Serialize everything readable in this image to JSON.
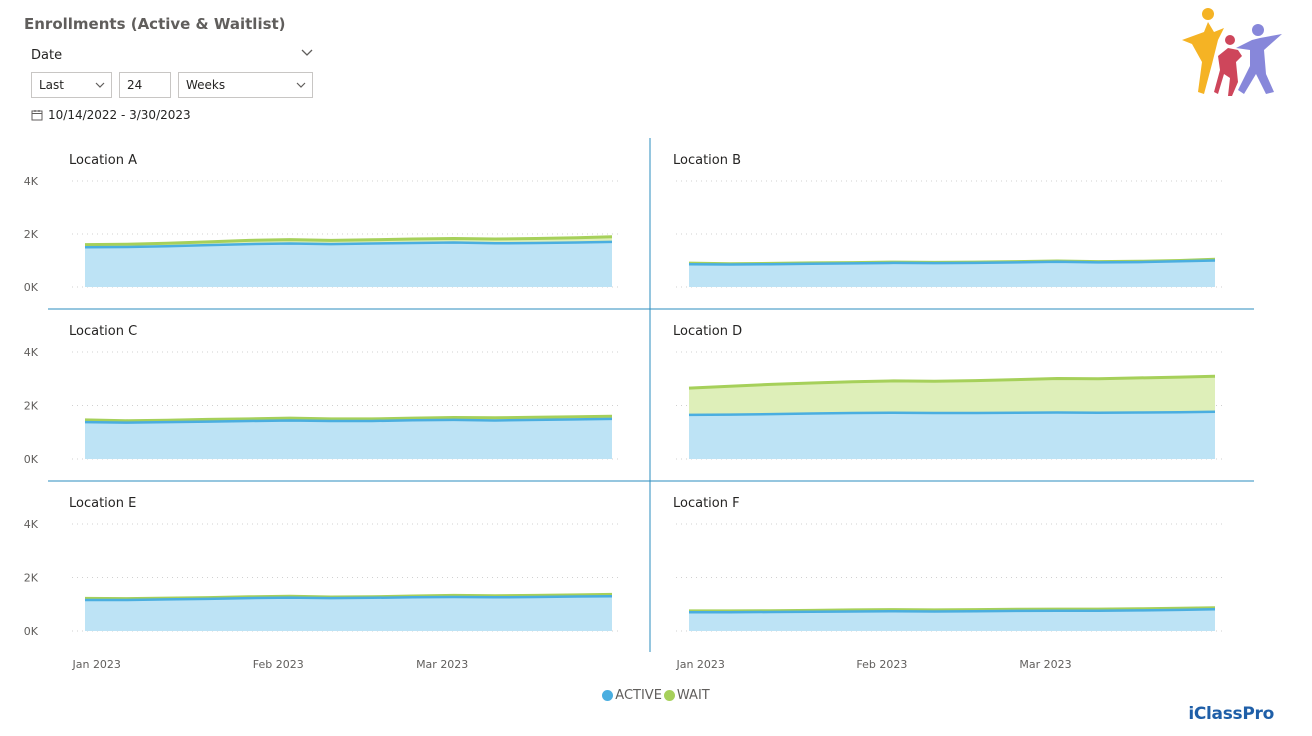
{
  "header": {
    "title": "Enrollments (Active & Waitlist)"
  },
  "slicer": {
    "label": "Date",
    "mode": "Last",
    "count": "24",
    "unit": "Weeks",
    "range_text": "10/14/2022 - 3/30/2023"
  },
  "brand": {
    "name": "iClassPro"
  },
  "colors": {
    "active_line": "#4aaee0",
    "active_fill": "#bde3f5",
    "wait_line": "#a6d05a",
    "wait_fill": "#deefb9",
    "divider": "#2b8dbf"
  },
  "chart_data": {
    "type": "area",
    "x_ticks": [
      "Jan 2023",
      "Feb 2023",
      "Mar 2023"
    ],
    "y_ticks": [
      "0K",
      "2K",
      "4K"
    ],
    "ylim": [
      0,
      4000
    ],
    "legend": {
      "position": "bottom-center",
      "items": [
        "ACTIVE",
        "WAIT"
      ]
    },
    "x": [
      "2022-12-30",
      "2023-01-06",
      "2023-01-13",
      "2023-01-20",
      "2023-01-27",
      "2023-02-03",
      "2023-02-10",
      "2023-02-17",
      "2023-02-24",
      "2023-03-03",
      "2023-03-10",
      "2023-03-17",
      "2023-03-24",
      "2023-03-30"
    ],
    "panels": [
      {
        "title": "Location A",
        "series": [
          {
            "name": "ACTIVE",
            "values": [
              1500,
              1510,
              1540,
              1580,
              1620,
              1640,
              1620,
              1640,
              1660,
              1680,
              1650,
              1660,
              1680,
              1700
            ]
          },
          {
            "name": "WAIT",
            "values": [
              1600,
              1610,
              1650,
              1700,
              1760,
              1790,
              1760,
              1780,
              1810,
              1830,
              1810,
              1830,
              1860,
              1900
            ]
          }
        ]
      },
      {
        "title": "Location B",
        "series": [
          {
            "name": "ACTIVE",
            "values": [
              860,
              850,
              860,
              880,
              890,
              910,
              900,
              910,
              930,
              950,
              930,
              940,
              970,
              1000
            ]
          },
          {
            "name": "WAIT",
            "values": [
              900,
              880,
              890,
              910,
              920,
              940,
              930,
              940,
              960,
              980,
              960,
              970,
              1000,
              1050
            ]
          }
        ]
      },
      {
        "title": "Location C",
        "series": [
          {
            "name": "ACTIVE",
            "values": [
              1380,
              1360,
              1380,
              1400,
              1420,
              1440,
              1420,
              1420,
              1450,
              1460,
              1440,
              1460,
              1480,
              1500
            ]
          },
          {
            "name": "WAIT",
            "values": [
              1460,
              1430,
              1450,
              1480,
              1500,
              1530,
              1500,
              1500,
              1530,
              1550,
              1540,
              1560,
              1580,
              1600
            ]
          }
        ]
      },
      {
        "title": "Location D",
        "series": [
          {
            "name": "ACTIVE",
            "values": [
              1650,
              1660,
              1680,
              1700,
              1720,
              1730,
              1720,
              1720,
              1730,
              1740,
              1730,
              1740,
              1750,
              1770
            ]
          },
          {
            "name": "WAIT",
            "values": [
              2650,
              2720,
              2790,
              2840,
              2890,
              2920,
              2910,
              2930,
              2970,
              3010,
              3000,
              3030,
              3060,
              3090
            ]
          }
        ]
      },
      {
        "title": "Location E",
        "series": [
          {
            "name": "ACTIVE",
            "values": [
              1160,
              1160,
              1180,
              1200,
              1230,
              1250,
              1230,
              1240,
              1260,
              1270,
              1260,
              1270,
              1290,
              1300
            ]
          },
          {
            "name": "WAIT",
            "values": [
              1220,
              1210,
              1230,
              1250,
              1280,
              1300,
              1270,
              1280,
              1310,
              1330,
              1320,
              1330,
              1350,
              1370
            ]
          }
        ]
      },
      {
        "title": "Location F",
        "series": [
          {
            "name": "ACTIVE",
            "values": [
              700,
              700,
              710,
              720,
              730,
              740,
              730,
              740,
              750,
              760,
              760,
              770,
              790,
              810
            ]
          },
          {
            "name": "WAIT",
            "values": [
              750,
              750,
              760,
              770,
              790,
              800,
              790,
              800,
              810,
              820,
              820,
              830,
              850,
              870
            ]
          }
        ]
      }
    ]
  }
}
